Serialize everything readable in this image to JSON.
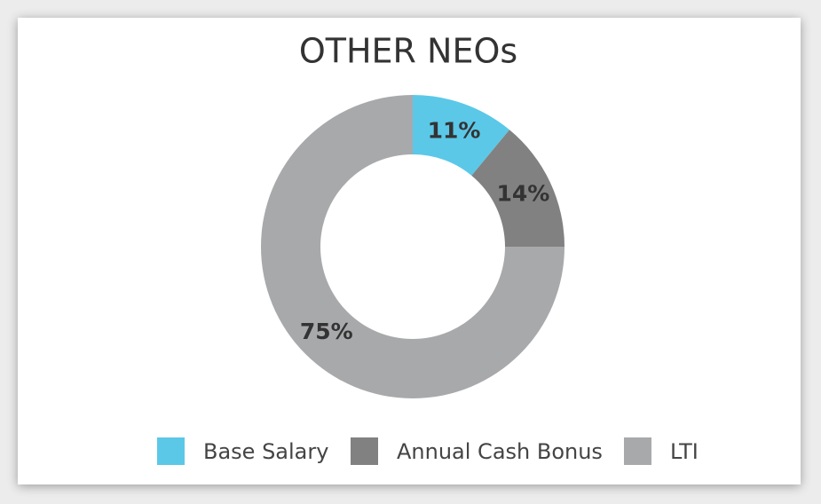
{
  "chart_data": {
    "type": "donut",
    "title": "OTHER NEOs",
    "categories": [
      "Base Salary",
      "Annual Cash Bonus",
      "LTI"
    ],
    "values": [
      11,
      14,
      75
    ],
    "value_labels": [
      "11%",
      "14%",
      "75%"
    ],
    "colors": [
      "#5bc8e8",
      "#818181",
      "#a8a9ab"
    ],
    "legend": "bottom"
  }
}
